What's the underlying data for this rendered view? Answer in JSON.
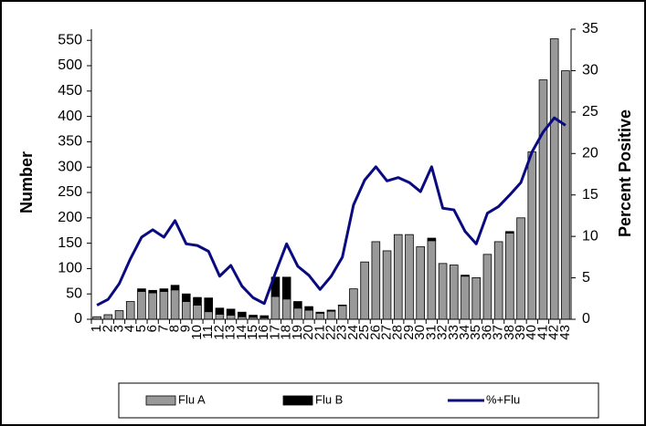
{
  "chart_data": {
    "type": "bar-line",
    "y_label": "Number",
    "y2_label": "Percent Positive",
    "categories": [
      "1",
      "2",
      "3",
      "4",
      "5",
      "6",
      "7",
      "8",
      "9",
      "10",
      "11",
      "12",
      "13",
      "14",
      "15",
      "16",
      "17",
      "18",
      "19",
      "20",
      "21",
      "22",
      "23",
      "24",
      "25",
      "26",
      "27",
      "28",
      "29",
      "30",
      "31",
      "32",
      "33",
      "34",
      "35",
      "36",
      "37",
      "38",
      "39",
      "40",
      "41",
      "42",
      "43"
    ],
    "series": [
      {
        "name": "Flu A",
        "type": "bar",
        "color": "#999999",
        "values": [
          5,
          9,
          17,
          35,
          55,
          52,
          55,
          58,
          35,
          28,
          15,
          10,
          8,
          5,
          4,
          3,
          45,
          40,
          22,
          18,
          12,
          16,
          27,
          60,
          113,
          153,
          135,
          167,
          167,
          143,
          155,
          110,
          107,
          85,
          82,
          128,
          153,
          170,
          200,
          330,
          472,
          553,
          490
        ]
      },
      {
        "name": "Flu B",
        "type": "bar",
        "color": "#000000",
        "values": [
          0,
          0,
          0,
          0,
          5,
          5,
          5,
          9,
          15,
          15,
          27,
          12,
          12,
          9,
          4,
          4,
          38,
          43,
          13,
          7,
          2,
          2,
          1,
          0,
          0,
          0,
          0,
          0,
          0,
          0,
          5,
          0,
          0,
          2,
          0,
          0,
          0,
          3,
          0,
          0,
          0,
          0,
          0
        ]
      },
      {
        "name": "%+Flu",
        "type": "line",
        "axis": "y2",
        "color": "#0a0a80",
        "values": [
          1.7,
          2.4,
          4.3,
          7.3,
          9.9,
          10.8,
          9.9,
          11.9,
          9.1,
          8.9,
          8.2,
          5.2,
          6.5,
          4.0,
          2.6,
          1.9,
          5.6,
          9.1,
          6.4,
          5.3,
          3.6,
          5.2,
          7.5,
          13.8,
          16.8,
          18.4,
          16.7,
          17.1,
          16.5,
          15.4,
          18.4,
          13.4,
          13.2,
          10.6,
          9.1,
          12.8,
          13.6,
          15.0,
          16.5,
          20.2,
          22.6,
          24.3,
          23.4
        ]
      }
    ],
    "ylim": [
      0,
      572
    ],
    "yticks": [
      0,
      50,
      100,
      150,
      200,
      250,
      300,
      350,
      400,
      450,
      500,
      550
    ],
    "y2lim": [
      0,
      35
    ],
    "y2ticks": [
      0,
      5,
      10,
      15,
      20,
      25,
      30,
      35
    ],
    "stacked": true,
    "grid": false,
    "legend": "bottom"
  }
}
